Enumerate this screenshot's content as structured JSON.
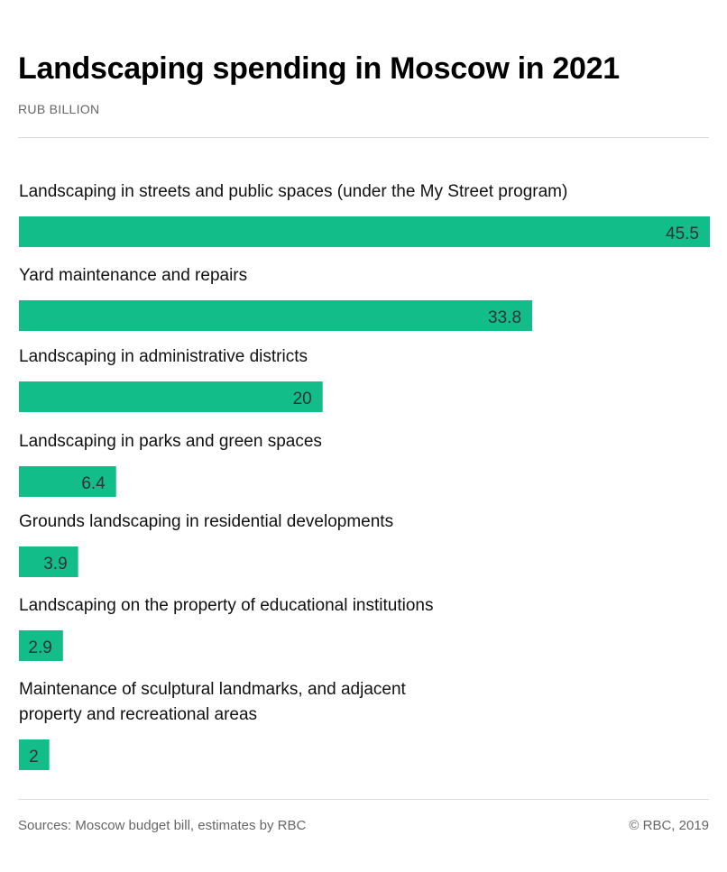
{
  "title": "Landscaping spending in Moscow in 2021",
  "subtitle": "RUB BILLION",
  "footer": {
    "sources": "Sources: Moscow budget bill, estimates by RBC",
    "copyright": "© RBC, 2019"
  },
  "colors": {
    "bar": "#13bd8a"
  },
  "chart_data": {
    "type": "bar",
    "orientation": "horizontal",
    "categories": [
      "Landscaping in streets and public spaces (under the My Street program)",
      "Yard maintenance and repairs",
      "Landscaping in administrative districts",
      "Landscaping in parks and green spaces",
      "Grounds landscaping in residential developments",
      "Landscaping on the property of educational institutions",
      "Maintenance of sculptural landmarks, and adjacent property and recreational areas"
    ],
    "category_lines": [
      [
        "Landscaping in streets and public spaces (under the My Street program)"
      ],
      [
        "Yard maintenance and repairs"
      ],
      [
        "Landscaping in administrative districts"
      ],
      [
        "Landscaping in parks and green spaces"
      ],
      [
        "Grounds landscaping in residential developments"
      ],
      [
        "Landscaping on the property of educational institutions"
      ],
      [
        "Maintenance of sculptural landmarks, and adjacent",
        "property and recreational areas"
      ]
    ],
    "values": [
      45.5,
      33.8,
      20,
      6.4,
      3.9,
      2.9,
      2
    ],
    "value_labels": [
      "45.5",
      "33.8",
      "20",
      "6.4",
      "3.9",
      "2.9",
      "2"
    ],
    "title": "Landscaping spending in Moscow in 2021",
    "unit": "RUB BILLION",
    "xlim": [
      0,
      45.5
    ],
    "grid": false,
    "legend": "none"
  }
}
